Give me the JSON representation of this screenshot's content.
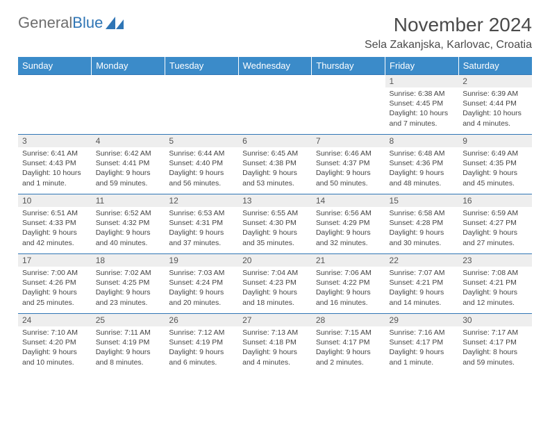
{
  "brand": {
    "name_part1": "General",
    "name_part2": "Blue",
    "color_gray": "#6d6d6d",
    "color_blue": "#2f75b5"
  },
  "header": {
    "month_title": "November 2024",
    "location": "Sela Zakanjska, Karlovac, Croatia"
  },
  "calendar": {
    "day_names": [
      "Sunday",
      "Monday",
      "Tuesday",
      "Wednesday",
      "Thursday",
      "Friday",
      "Saturday"
    ],
    "header_bg": "#3b8bc9",
    "header_fg": "#ffffff",
    "cell_border": "#2f75b5",
    "daynum_bg": "#eeeeee",
    "text_color": "#444444",
    "font_size_day": 10.5,
    "weeks": [
      [
        {
          "n": "",
          "sunrise": "",
          "sunset": "",
          "daylight": ""
        },
        {
          "n": "",
          "sunrise": "",
          "sunset": "",
          "daylight": ""
        },
        {
          "n": "",
          "sunrise": "",
          "sunset": "",
          "daylight": ""
        },
        {
          "n": "",
          "sunrise": "",
          "sunset": "",
          "daylight": ""
        },
        {
          "n": "",
          "sunrise": "",
          "sunset": "",
          "daylight": ""
        },
        {
          "n": "1",
          "sunrise": "Sunrise: 6:38 AM",
          "sunset": "Sunset: 4:45 PM",
          "daylight": "Daylight: 10 hours and 7 minutes."
        },
        {
          "n": "2",
          "sunrise": "Sunrise: 6:39 AM",
          "sunset": "Sunset: 4:44 PM",
          "daylight": "Daylight: 10 hours and 4 minutes."
        }
      ],
      [
        {
          "n": "3",
          "sunrise": "Sunrise: 6:41 AM",
          "sunset": "Sunset: 4:43 PM",
          "daylight": "Daylight: 10 hours and 1 minute."
        },
        {
          "n": "4",
          "sunrise": "Sunrise: 6:42 AM",
          "sunset": "Sunset: 4:41 PM",
          "daylight": "Daylight: 9 hours and 59 minutes."
        },
        {
          "n": "5",
          "sunrise": "Sunrise: 6:44 AM",
          "sunset": "Sunset: 4:40 PM",
          "daylight": "Daylight: 9 hours and 56 minutes."
        },
        {
          "n": "6",
          "sunrise": "Sunrise: 6:45 AM",
          "sunset": "Sunset: 4:38 PM",
          "daylight": "Daylight: 9 hours and 53 minutes."
        },
        {
          "n": "7",
          "sunrise": "Sunrise: 6:46 AM",
          "sunset": "Sunset: 4:37 PM",
          "daylight": "Daylight: 9 hours and 50 minutes."
        },
        {
          "n": "8",
          "sunrise": "Sunrise: 6:48 AM",
          "sunset": "Sunset: 4:36 PM",
          "daylight": "Daylight: 9 hours and 48 minutes."
        },
        {
          "n": "9",
          "sunrise": "Sunrise: 6:49 AM",
          "sunset": "Sunset: 4:35 PM",
          "daylight": "Daylight: 9 hours and 45 minutes."
        }
      ],
      [
        {
          "n": "10",
          "sunrise": "Sunrise: 6:51 AM",
          "sunset": "Sunset: 4:33 PM",
          "daylight": "Daylight: 9 hours and 42 minutes."
        },
        {
          "n": "11",
          "sunrise": "Sunrise: 6:52 AM",
          "sunset": "Sunset: 4:32 PM",
          "daylight": "Daylight: 9 hours and 40 minutes."
        },
        {
          "n": "12",
          "sunrise": "Sunrise: 6:53 AM",
          "sunset": "Sunset: 4:31 PM",
          "daylight": "Daylight: 9 hours and 37 minutes."
        },
        {
          "n": "13",
          "sunrise": "Sunrise: 6:55 AM",
          "sunset": "Sunset: 4:30 PM",
          "daylight": "Daylight: 9 hours and 35 minutes."
        },
        {
          "n": "14",
          "sunrise": "Sunrise: 6:56 AM",
          "sunset": "Sunset: 4:29 PM",
          "daylight": "Daylight: 9 hours and 32 minutes."
        },
        {
          "n": "15",
          "sunrise": "Sunrise: 6:58 AM",
          "sunset": "Sunset: 4:28 PM",
          "daylight": "Daylight: 9 hours and 30 minutes."
        },
        {
          "n": "16",
          "sunrise": "Sunrise: 6:59 AM",
          "sunset": "Sunset: 4:27 PM",
          "daylight": "Daylight: 9 hours and 27 minutes."
        }
      ],
      [
        {
          "n": "17",
          "sunrise": "Sunrise: 7:00 AM",
          "sunset": "Sunset: 4:26 PM",
          "daylight": "Daylight: 9 hours and 25 minutes."
        },
        {
          "n": "18",
          "sunrise": "Sunrise: 7:02 AM",
          "sunset": "Sunset: 4:25 PM",
          "daylight": "Daylight: 9 hours and 23 minutes."
        },
        {
          "n": "19",
          "sunrise": "Sunrise: 7:03 AM",
          "sunset": "Sunset: 4:24 PM",
          "daylight": "Daylight: 9 hours and 20 minutes."
        },
        {
          "n": "20",
          "sunrise": "Sunrise: 7:04 AM",
          "sunset": "Sunset: 4:23 PM",
          "daylight": "Daylight: 9 hours and 18 minutes."
        },
        {
          "n": "21",
          "sunrise": "Sunrise: 7:06 AM",
          "sunset": "Sunset: 4:22 PM",
          "daylight": "Daylight: 9 hours and 16 minutes."
        },
        {
          "n": "22",
          "sunrise": "Sunrise: 7:07 AM",
          "sunset": "Sunset: 4:21 PM",
          "daylight": "Daylight: 9 hours and 14 minutes."
        },
        {
          "n": "23",
          "sunrise": "Sunrise: 7:08 AM",
          "sunset": "Sunset: 4:21 PM",
          "daylight": "Daylight: 9 hours and 12 minutes."
        }
      ],
      [
        {
          "n": "24",
          "sunrise": "Sunrise: 7:10 AM",
          "sunset": "Sunset: 4:20 PM",
          "daylight": "Daylight: 9 hours and 10 minutes."
        },
        {
          "n": "25",
          "sunrise": "Sunrise: 7:11 AM",
          "sunset": "Sunset: 4:19 PM",
          "daylight": "Daylight: 9 hours and 8 minutes."
        },
        {
          "n": "26",
          "sunrise": "Sunrise: 7:12 AM",
          "sunset": "Sunset: 4:19 PM",
          "daylight": "Daylight: 9 hours and 6 minutes."
        },
        {
          "n": "27",
          "sunrise": "Sunrise: 7:13 AM",
          "sunset": "Sunset: 4:18 PM",
          "daylight": "Daylight: 9 hours and 4 minutes."
        },
        {
          "n": "28",
          "sunrise": "Sunrise: 7:15 AM",
          "sunset": "Sunset: 4:17 PM",
          "daylight": "Daylight: 9 hours and 2 minutes."
        },
        {
          "n": "29",
          "sunrise": "Sunrise: 7:16 AM",
          "sunset": "Sunset: 4:17 PM",
          "daylight": "Daylight: 9 hours and 1 minute."
        },
        {
          "n": "30",
          "sunrise": "Sunrise: 7:17 AM",
          "sunset": "Sunset: 4:17 PM",
          "daylight": "Daylight: 8 hours and 59 minutes."
        }
      ]
    ]
  }
}
